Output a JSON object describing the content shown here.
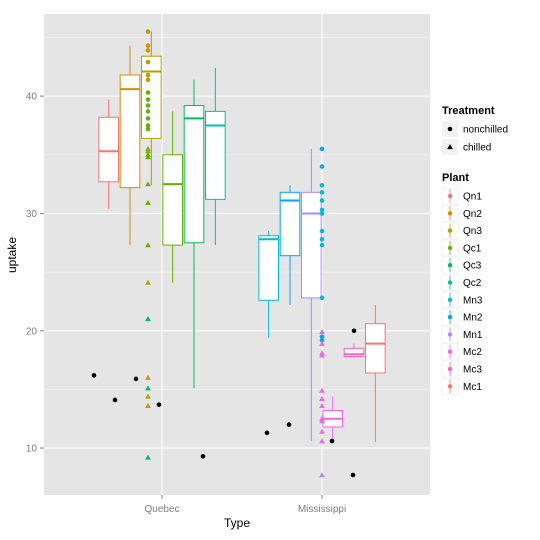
{
  "chart_data": {
    "type": "boxplot",
    "xlabel": "Type",
    "ylabel": "uptake",
    "ylim": [
      6,
      47
    ],
    "yticks": [
      10,
      20,
      30,
      40
    ],
    "categories": [
      "Quebec",
      "Mississippi"
    ],
    "grid": true,
    "legend_placement": "right",
    "treatment_legend": {
      "title": "Treatment",
      "entries": [
        {
          "label": "nonchilled",
          "shape": "circle"
        },
        {
          "label": "chilled",
          "shape": "triangle"
        }
      ]
    },
    "plant_legend": {
      "title": "Plant",
      "entries": [
        {
          "label": "Qn1",
          "color": "#F8766D"
        },
        {
          "label": "Qn2",
          "color": "#DB8E00"
        },
        {
          "label": "Qn3",
          "color": "#AEA200"
        },
        {
          "label": "Qc1",
          "color": "#64B200"
        },
        {
          "label": "Qc3",
          "color": "#00BD5C"
        },
        {
          "label": "Qc2",
          "color": "#00C1A7"
        },
        {
          "label": "Mn3",
          "color": "#00BADE"
        },
        {
          "label": "Mn2",
          "color": "#00A6FF"
        },
        {
          "label": "Mn1",
          "color": "#B385FF"
        },
        {
          "label": "Mc2",
          "color": "#EF67EB"
        },
        {
          "label": "Mc3",
          "color": "#FF63B6"
        },
        {
          "label": "Mc1",
          "color": "#F8766D"
        }
      ]
    },
    "boxes": [
      {
        "category": "Quebec",
        "plant": "Qn1",
        "min": 30.4,
        "q1": 32.7,
        "median": 35.3,
        "q3": 38.2,
        "max": 39.7,
        "color": "#F8766D"
      },
      {
        "category": "Quebec",
        "plant": "Qn2",
        "min": 27.3,
        "q1": 32.2,
        "median": 40.6,
        "q3": 41.8,
        "max": 44.3,
        "color": "#DB8E00"
      },
      {
        "category": "Quebec",
        "plant": "Qn3",
        "min": 32.4,
        "q1": 36.4,
        "median": 42.1,
        "q3": 43.4,
        "max": 45.5,
        "color": "#AEA200"
      },
      {
        "category": "Quebec",
        "plant": "Qc1",
        "min": 24.1,
        "q1": 27.3,
        "median": 32.5,
        "q3": 35.0,
        "max": 38.7,
        "color": "#64B200"
      },
      {
        "category": "Quebec",
        "plant": "Qc3",
        "min": 15.1,
        "q1": 27.5,
        "median": 38.1,
        "q3": 39.2,
        "max": 41.4,
        "color": "#00BD5C"
      },
      {
        "category": "Quebec",
        "plant": "Qc2",
        "min": 27.3,
        "q1": 31.2,
        "median": 37.5,
        "q3": 38.7,
        "max": 42.4,
        "color": "#00C1A7"
      },
      {
        "category": "Mississippi",
        "plant": "Mn3",
        "min": 19.4,
        "q1": 22.6,
        "median": 27.8,
        "q3": 28.1,
        "max": 28.5,
        "color": "#00BADE"
      },
      {
        "category": "Mississippi",
        "plant": "Mn2",
        "min": 22.2,
        "q1": 26.4,
        "median": 31.1,
        "q3": 31.8,
        "max": 32.4,
        "color": "#00A6FF"
      },
      {
        "category": "Mississippi",
        "plant": "Mn1",
        "min": 10.6,
        "q1": 22.8,
        "median": 30.0,
        "q3": 31.8,
        "max": 35.5,
        "color": "#B385FF"
      },
      {
        "category": "Mississippi",
        "plant": "Mc2",
        "min": 10.6,
        "q1": 11.8,
        "median": 12.5,
        "q3": 13.2,
        "max": 14.4,
        "color": "#EF67EB"
      },
      {
        "category": "Mississippi",
        "plant": "Mc3",
        "min": 17.7,
        "q1": 17.8,
        "median": 18.0,
        "q3": 18.5,
        "max": 18.9,
        "color": "#FF63B6"
      },
      {
        "category": "Mississippi",
        "plant": "Mc1",
        "min": 10.5,
        "q1": 16.4,
        "median": 18.9,
        "q3": 20.6,
        "max": 22.2,
        "color": "#F8766D"
      }
    ],
    "points": [
      {
        "category": "Quebec",
        "value": 45.5,
        "shape": "circle",
        "color": "#AEA200"
      },
      {
        "category": "Quebec",
        "value": 44.3,
        "shape": "circle",
        "color": "#DB8E00"
      },
      {
        "category": "Quebec",
        "value": 43.9,
        "shape": "circle",
        "color": "#DB8E00"
      },
      {
        "category": "Quebec",
        "value": 42.9,
        "shape": "circle",
        "color": "#AEA200"
      },
      {
        "category": "Quebec",
        "value": 41.8,
        "shape": "circle",
        "color": "#AEA200"
      },
      {
        "category": "Quebec",
        "value": 41.4,
        "shape": "circle",
        "color": "#DB8E00"
      },
      {
        "category": "Quebec",
        "value": 40.3,
        "shape": "circle",
        "color": "#64B200"
      },
      {
        "category": "Quebec",
        "value": 39.7,
        "shape": "circle",
        "color": "#64B200"
      },
      {
        "category": "Quebec",
        "value": 39.2,
        "shape": "circle",
        "color": "#64B200"
      },
      {
        "category": "Quebec",
        "value": 38.7,
        "shape": "circle",
        "color": "#64B200"
      },
      {
        "category": "Quebec",
        "value": 38.1,
        "shape": "circle",
        "color": "#64B200"
      },
      {
        "category": "Quebec",
        "value": 37.5,
        "shape": "circle",
        "color": "#64B200"
      },
      {
        "category": "Quebec",
        "value": 37.2,
        "shape": "circle",
        "color": "#64B200"
      },
      {
        "category": "Quebec",
        "value": 35.5,
        "shape": "triangle",
        "color": "#64B200"
      },
      {
        "category": "Quebec",
        "value": 35.3,
        "shape": "triangle",
        "color": "#AEA200"
      },
      {
        "category": "Quebec",
        "value": 35.0,
        "shape": "triangle",
        "color": "#64B200"
      },
      {
        "category": "Quebec",
        "value": 34.8,
        "shape": "triangle",
        "color": "#64B200"
      },
      {
        "category": "Quebec",
        "value": 32.5,
        "shape": "triangle",
        "color": "#64B200"
      },
      {
        "category": "Quebec",
        "value": 30.9,
        "shape": "triangle",
        "color": "#64B200"
      },
      {
        "category": "Quebec",
        "value": 27.3,
        "shape": "triangle",
        "color": "#64B200"
      },
      {
        "category": "Quebec",
        "value": 24.1,
        "shape": "triangle",
        "color": "#AEA200"
      },
      {
        "category": "Quebec",
        "value": 21.0,
        "shape": "triangle",
        "color": "#00BD5C"
      },
      {
        "category": "Quebec",
        "value": 16.2,
        "shape": "circle",
        "color": "#000000"
      },
      {
        "category": "Quebec",
        "value": 16.0,
        "shape": "triangle",
        "color": "#DB8E00"
      },
      {
        "category": "Quebec",
        "value": 15.9,
        "shape": "circle",
        "color": "#000000"
      },
      {
        "category": "Quebec",
        "value": 15.1,
        "shape": "triangle",
        "color": "#00BD5C"
      },
      {
        "category": "Quebec",
        "value": 14.4,
        "shape": "triangle",
        "color": "#AEA200"
      },
      {
        "category": "Quebec",
        "value": 14.1,
        "shape": "circle",
        "color": "#000000"
      },
      {
        "category": "Quebec",
        "value": 13.7,
        "shape": "circle",
        "color": "#000000"
      },
      {
        "category": "Quebec",
        "value": 13.6,
        "shape": "triangle",
        "color": "#DB8E00"
      },
      {
        "category": "Quebec",
        "value": 9.3,
        "shape": "circle",
        "color": "#000000"
      },
      {
        "category": "Quebec",
        "value": 9.2,
        "shape": "triangle",
        "color": "#00BD5C"
      },
      {
        "category": "Mississippi",
        "value": 35.5,
        "shape": "circle",
        "color": "#00A6FF"
      },
      {
        "category": "Mississippi",
        "value": 34.0,
        "shape": "circle",
        "color": "#00A6FF"
      },
      {
        "category": "Mississippi",
        "value": 32.4,
        "shape": "circle",
        "color": "#00BADE"
      },
      {
        "category": "Mississippi",
        "value": 31.8,
        "shape": "circle",
        "color": "#00BADE"
      },
      {
        "category": "Mississippi",
        "value": 31.1,
        "shape": "circle",
        "color": "#00BADE"
      },
      {
        "category": "Mississippi",
        "value": 30.3,
        "shape": "circle",
        "color": "#00BADE"
      },
      {
        "category": "Mississippi",
        "value": 30.0,
        "shape": "circle",
        "color": "#00BADE"
      },
      {
        "category": "Mississippi",
        "value": 28.5,
        "shape": "circle",
        "color": "#00BADE"
      },
      {
        "category": "Mississippi",
        "value": 27.8,
        "shape": "circle",
        "color": "#00BADE"
      },
      {
        "category": "Mississippi",
        "value": 27.3,
        "shape": "circle",
        "color": "#00BADE"
      },
      {
        "category": "Mississippi",
        "value": 22.8,
        "shape": "circle",
        "color": "#00BADE"
      },
      {
        "category": "Mississippi",
        "value": 19.9,
        "shape": "triangle",
        "color": "#EF67EB"
      },
      {
        "category": "Mississippi",
        "value": 19.5,
        "shape": "circle",
        "color": "#00A6FF"
      },
      {
        "category": "Mississippi",
        "value": 19.2,
        "shape": "circle",
        "color": "#00A6FF"
      },
      {
        "category": "Mississippi",
        "value": 18.9,
        "shape": "triangle",
        "color": "#EF67EB"
      },
      {
        "category": "Mississippi",
        "value": 18.1,
        "shape": "triangle",
        "color": "#EF67EB"
      },
      {
        "category": "Mississippi",
        "value": 17.9,
        "shape": "triangle",
        "color": "#EF67EB"
      },
      {
        "category": "Mississippi",
        "value": 14.9,
        "shape": "triangle",
        "color": "#EF67EB"
      },
      {
        "category": "Mississippi",
        "value": 14.2,
        "shape": "triangle",
        "color": "#EF67EB"
      },
      {
        "category": "Mississippi",
        "value": 13.6,
        "shape": "triangle",
        "color": "#EF67EB"
      },
      {
        "category": "Mississippi",
        "value": 12.5,
        "shape": "triangle",
        "color": "#EF67EB"
      },
      {
        "category": "Mississippi",
        "value": 12.3,
        "shape": "triangle",
        "color": "#EF67EB"
      },
      {
        "category": "Mississippi",
        "value": 11.4,
        "shape": "triangle",
        "color": "#EF67EB"
      },
      {
        "category": "Mississippi",
        "value": 10.6,
        "shape": "triangle",
        "color": "#EF67EB"
      },
      {
        "category": "Mississippi",
        "value": 7.7,
        "shape": "triangle",
        "color": "#B385FF"
      },
      {
        "category": "Mississippi",
        "value": 11.3,
        "shape": "circle",
        "color": "#000000"
      },
      {
        "category": "Mississippi",
        "value": 12.0,
        "shape": "circle",
        "color": "#000000"
      },
      {
        "category": "Mississippi",
        "value": 10.6,
        "shape": "circle",
        "color": "#000000"
      },
      {
        "category": "Mississippi",
        "value": 7.7,
        "shape": "circle",
        "color": "#000000"
      },
      {
        "category": "Mississippi",
        "value": 20.0,
        "shape": "circle",
        "color": "#000000"
      }
    ]
  }
}
